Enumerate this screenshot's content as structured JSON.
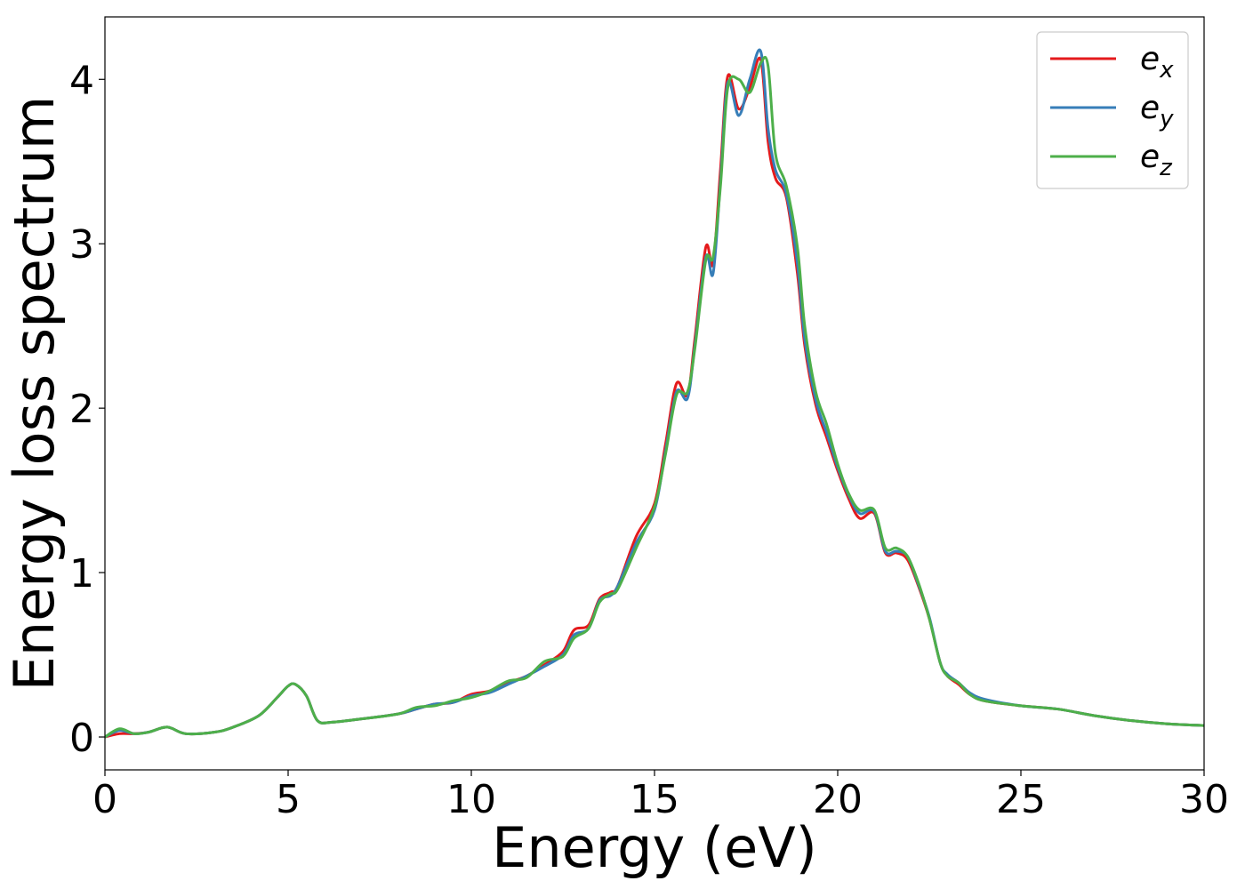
{
  "chart_data": {
    "type": "line",
    "title": "",
    "xlabel": "Energy (eV)",
    "ylabel": "Energy loss spectrum",
    "xlim": [
      0,
      30
    ],
    "ylim": [
      -0.2,
      4.38
    ],
    "xticks": [
      0,
      5,
      10,
      15,
      20,
      25,
      30
    ],
    "xtick_labels": [
      "0",
      "5",
      "10",
      "15",
      "20",
      "25",
      "30"
    ],
    "yticks": [
      0,
      1,
      2,
      3,
      4
    ],
    "ytick_labels": [
      "0",
      "1",
      "2",
      "3",
      "4"
    ],
    "grid": false,
    "legend_position": "top-right",
    "series": [
      {
        "name": "e_x",
        "legend": {
          "base": "e",
          "sub": "x"
        },
        "color": "#e41a1c",
        "x": [
          0,
          0.4,
          0.8,
          1.2,
          1.7,
          2.2,
          3.0,
          3.5,
          4.2,
          4.7,
          5.0,
          5.2,
          5.5,
          5.8,
          6.2,
          7.0,
          8.0,
          8.5,
          9.0,
          9.5,
          10.0,
          10.5,
          11.0,
          11.5,
          12.0,
          12.5,
          12.8,
          13.2,
          13.5,
          13.8,
          14.0,
          14.5,
          15.0,
          15.3,
          15.6,
          15.9,
          16.1,
          16.4,
          16.6,
          16.8,
          17.0,
          17.3,
          17.6,
          17.9,
          18.1,
          18.3,
          18.6,
          18.9,
          19.1,
          19.4,
          19.7,
          20.0,
          20.3,
          20.6,
          21.0,
          21.3,
          21.6,
          21.9,
          22.2,
          22.5,
          22.8,
          23.0,
          23.3,
          23.6,
          24.0,
          25.0,
          26.0,
          27.0,
          28.0,
          29.0,
          30.0
        ],
        "y": [
          0.0,
          0.02,
          0.02,
          0.03,
          0.06,
          0.02,
          0.03,
          0.06,
          0.13,
          0.24,
          0.31,
          0.32,
          0.25,
          0.1,
          0.09,
          0.11,
          0.14,
          0.17,
          0.2,
          0.21,
          0.26,
          0.28,
          0.33,
          0.37,
          0.44,
          0.52,
          0.65,
          0.68,
          0.84,
          0.88,
          0.92,
          1.22,
          1.42,
          1.78,
          2.15,
          2.08,
          2.42,
          2.98,
          2.88,
          3.45,
          4.02,
          3.82,
          3.95,
          4.12,
          3.62,
          3.4,
          3.28,
          2.82,
          2.38,
          2.02,
          1.82,
          1.62,
          1.45,
          1.33,
          1.36,
          1.12,
          1.12,
          1.08,
          0.92,
          0.72,
          0.45,
          0.37,
          0.32,
          0.26,
          0.22,
          0.19,
          0.17,
          0.13,
          0.1,
          0.08,
          0.07
        ]
      },
      {
        "name": "e_y",
        "legend": {
          "base": "e",
          "sub": "y"
        },
        "color": "#377eb8",
        "x": [
          0,
          0.4,
          0.8,
          1.2,
          1.7,
          2.2,
          3.0,
          3.5,
          4.2,
          4.7,
          5.0,
          5.2,
          5.5,
          5.8,
          6.2,
          7.0,
          8.0,
          8.5,
          9.0,
          9.5,
          10.0,
          10.5,
          11.0,
          11.5,
          12.0,
          12.5,
          12.8,
          13.2,
          13.5,
          13.8,
          14.0,
          14.5,
          15.0,
          15.3,
          15.6,
          15.9,
          16.1,
          16.4,
          16.6,
          16.8,
          17.0,
          17.3,
          17.6,
          17.9,
          18.1,
          18.3,
          18.6,
          18.9,
          19.1,
          19.4,
          19.7,
          20.0,
          20.3,
          20.6,
          21.0,
          21.3,
          21.6,
          21.9,
          22.2,
          22.5,
          22.8,
          23.0,
          23.3,
          23.6,
          24.0,
          25.0,
          26.0,
          27.0,
          28.0,
          29.0,
          30.0
        ],
        "y": [
          0.0,
          0.04,
          0.02,
          0.03,
          0.06,
          0.02,
          0.03,
          0.06,
          0.13,
          0.24,
          0.31,
          0.32,
          0.25,
          0.1,
          0.09,
          0.11,
          0.14,
          0.17,
          0.2,
          0.21,
          0.25,
          0.27,
          0.32,
          0.37,
          0.43,
          0.5,
          0.62,
          0.66,
          0.83,
          0.86,
          0.92,
          1.18,
          1.38,
          1.74,
          2.1,
          2.06,
          2.38,
          2.92,
          2.82,
          3.38,
          3.98,
          3.78,
          4.0,
          4.17,
          3.7,
          3.45,
          3.3,
          2.88,
          2.42,
          2.05,
          1.85,
          1.64,
          1.47,
          1.36,
          1.37,
          1.13,
          1.13,
          1.1,
          0.93,
          0.73,
          0.45,
          0.38,
          0.33,
          0.27,
          0.23,
          0.19,
          0.17,
          0.13,
          0.1,
          0.08,
          0.07
        ]
      },
      {
        "name": "e_z",
        "legend": {
          "base": "e",
          "sub": "z"
        },
        "color": "#4daf4a",
        "x": [
          0,
          0.4,
          0.8,
          1.2,
          1.7,
          2.2,
          3.0,
          3.5,
          4.2,
          4.7,
          5.0,
          5.2,
          5.5,
          5.8,
          6.2,
          7.0,
          8.0,
          8.5,
          9.0,
          9.5,
          10.0,
          10.5,
          11.0,
          11.5,
          12.0,
          12.5,
          12.8,
          13.2,
          13.5,
          13.8,
          14.0,
          14.5,
          15.0,
          15.3,
          15.6,
          15.9,
          16.1,
          16.4,
          16.6,
          16.8,
          17.0,
          17.3,
          17.6,
          17.9,
          18.1,
          18.3,
          18.6,
          18.9,
          19.1,
          19.4,
          19.7,
          20.0,
          20.3,
          20.6,
          21.0,
          21.3,
          21.6,
          21.9,
          22.2,
          22.5,
          22.8,
          23.0,
          23.3,
          23.6,
          24.0,
          25.0,
          26.0,
          27.0,
          28.0,
          29.0,
          30.0
        ],
        "y": [
          0.0,
          0.05,
          0.02,
          0.03,
          0.06,
          0.02,
          0.03,
          0.06,
          0.13,
          0.24,
          0.31,
          0.32,
          0.25,
          0.1,
          0.09,
          0.11,
          0.14,
          0.18,
          0.19,
          0.22,
          0.24,
          0.28,
          0.34,
          0.36,
          0.46,
          0.49,
          0.6,
          0.66,
          0.82,
          0.87,
          0.9,
          1.15,
          1.4,
          1.72,
          2.08,
          2.1,
          2.36,
          2.9,
          2.92,
          3.35,
          3.95,
          4.0,
          3.92,
          4.1,
          4.08,
          3.55,
          3.35,
          2.98,
          2.5,
          2.1,
          1.9,
          1.66,
          1.48,
          1.38,
          1.38,
          1.15,
          1.15,
          1.1,
          0.94,
          0.72,
          0.45,
          0.37,
          0.33,
          0.26,
          0.22,
          0.19,
          0.17,
          0.13,
          0.1,
          0.08,
          0.07
        ]
      }
    ]
  }
}
